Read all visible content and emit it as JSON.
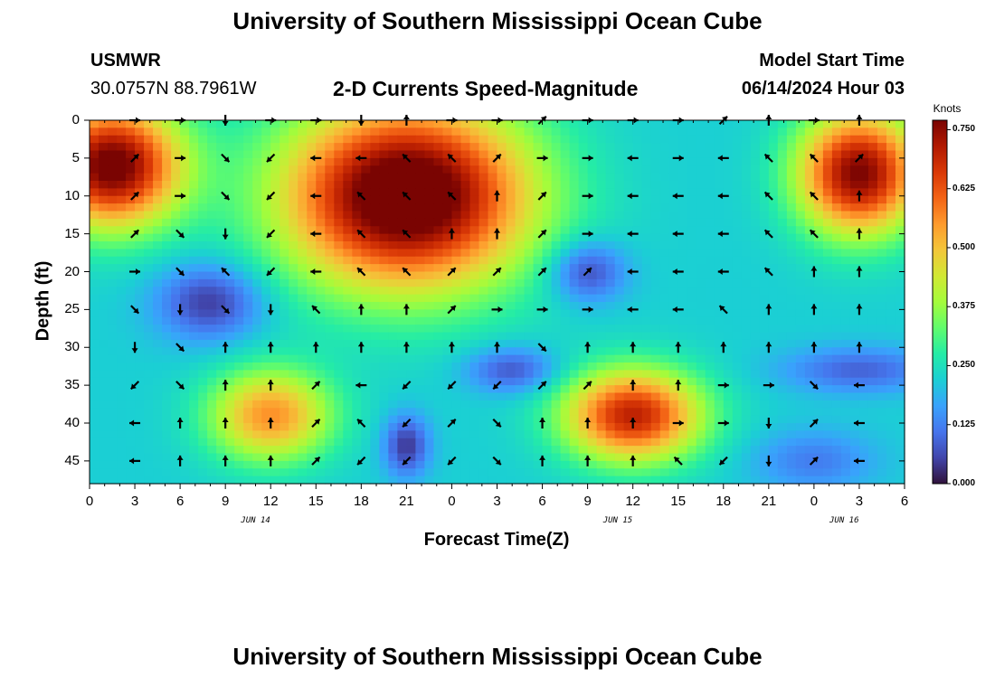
{
  "page": {
    "title": "University of Southern Mississippi Ocean Cube",
    "station": "USMWR",
    "coords": "30.0757N  88.7961W",
    "subtitle": "2-D Currents Speed-Magnitude",
    "model_start_label": "Model Start Time",
    "model_start_value": "06/14/2024 Hour 03",
    "footer_title": "University of Southern Mississippi Ocean Cube"
  },
  "chart_data": {
    "type": "heatmap",
    "subtitle": "2-D Currents Speed-Magnitude",
    "xlabel": "Forecast Time(Z)",
    "ylabel": "Depth (ft)",
    "x_ticks": [
      "0",
      "3",
      "6",
      "9",
      "12",
      "15",
      "18",
      "21",
      "0",
      "3",
      "6",
      "9",
      "12",
      "15",
      "18",
      "21",
      "0",
      "3",
      "6"
    ],
    "x_range_hours": [
      0,
      54
    ],
    "day_labels": [
      {
        "text": "JUN 14",
        "hour": 11
      },
      {
        "text": "JUN 15",
        "hour": 35
      },
      {
        "text": "JUN 16",
        "hour": 50
      }
    ],
    "y_ticks": [
      0,
      5,
      10,
      15,
      20,
      25,
      30,
      35,
      40,
      45
    ],
    "y_range": [
      0,
      48
    ],
    "y_inverted": true,
    "colorbar": {
      "unit": "Knots",
      "ticks": [
        "0.000",
        "0.125",
        "0.250",
        "0.375",
        "0.500",
        "0.625",
        "0.750"
      ],
      "range": [
        0,
        0.77
      ],
      "colormap": [
        "#30123b",
        "#4145ab",
        "#4675ed",
        "#39a2fc",
        "#1bcfd4",
        "#24eca6",
        "#61fc6c",
        "#a4fc3b",
        "#d1e834",
        "#f3c63a",
        "#fe9b2d",
        "#f36315",
        "#d93806",
        "#b11901",
        "#7a0402"
      ]
    },
    "speed_blobs": [
      {
        "hour": 1.5,
        "depth": 6,
        "hr_width": 4.5,
        "depth_width": 8,
        "amplitude": 0.58
      },
      {
        "hour": 21.0,
        "depth": 10,
        "hr_width": 8.0,
        "depth_width": 12,
        "amplitude": 0.65
      },
      {
        "hour": 51.0,
        "depth": 7,
        "hr_width": 4.0,
        "depth_width": 8,
        "amplitude": 0.55
      },
      {
        "hour": 12.0,
        "depth": 39,
        "hr_width": 4.0,
        "depth_width": 6,
        "amplitude": 0.34
      },
      {
        "hour": 36.0,
        "depth": 39,
        "hr_width": 4.5,
        "depth_width": 6,
        "amplitude": 0.48
      },
      {
        "hour": 8.0,
        "depth": 24,
        "hr_width": 3.5,
        "depth_width": 5,
        "amplitude": -0.18
      },
      {
        "hour": 33.0,
        "depth": 20,
        "hr_width": 2.5,
        "depth_width": 4,
        "amplitude": -0.17
      },
      {
        "hour": 28.0,
        "depth": 33,
        "hr_width": 3.0,
        "depth_width": 3,
        "amplitude": -0.15
      },
      {
        "hour": 21.0,
        "depth": 43,
        "hr_width": 1.5,
        "depth_width": 4,
        "amplitude": -0.18
      },
      {
        "hour": 51.0,
        "depth": 33,
        "hr_width": 5.0,
        "depth_width": 3,
        "amplitude": -0.13
      },
      {
        "hour": 48.0,
        "depth": 45,
        "hr_width": 4.0,
        "depth_width": 4,
        "amplitude": -0.1
      }
    ],
    "speed_background": 0.22,
    "vector_rows_depth": [
      0,
      5,
      10,
      15,
      20,
      25,
      30,
      35,
      40,
      45
    ],
    "vector_cols_hour": [
      3,
      6,
      9,
      12,
      15,
      18,
      21,
      24,
      27,
      30,
      33,
      36,
      39,
      42,
      45,
      48,
      51
    ],
    "vector_directions_deg": [
      [
        "e",
        "e",
        "s",
        "e",
        "e",
        "s",
        "n",
        "e",
        "e",
        "ne",
        "e",
        "e",
        "e",
        "ne",
        "n",
        "e",
        "n"
      ],
      [
        "ne",
        "e",
        "se",
        "sw",
        "w",
        "w",
        "nw",
        "nw",
        "ne",
        "e",
        "e",
        "w",
        "e",
        "w",
        "nw",
        "nw",
        "ne"
      ],
      [
        "ne",
        "e",
        "se",
        "sw",
        "w",
        "nw",
        "nw",
        "nw",
        "n",
        "ne",
        "e",
        "w",
        "w",
        "w",
        "nw",
        "nw",
        "n"
      ],
      [
        "ne",
        "se",
        "s",
        "sw",
        "w",
        "nw",
        "nw",
        "n",
        "n",
        "ne",
        "e",
        "w",
        "w",
        "w",
        "nw",
        "nw",
        "n"
      ],
      [
        "e",
        "se",
        "nw",
        "sw",
        "w",
        "nw",
        "nw",
        "ne",
        "ne",
        "ne",
        "ne",
        "w",
        "w",
        "w",
        "nw",
        "n",
        "n"
      ],
      [
        "se",
        "s",
        "se",
        "s",
        "nw",
        "n",
        "n",
        "ne",
        "e",
        "e",
        "e",
        "w",
        "w",
        "nw",
        "n",
        "n",
        "n"
      ],
      [
        "s",
        "se",
        "n",
        "n",
        "n",
        "n",
        "n",
        "n",
        "n",
        "se",
        "n",
        "n",
        "n",
        "n",
        "n",
        "n",
        "n"
      ],
      [
        "sw",
        "se",
        "n",
        "n",
        "ne",
        "w",
        "sw",
        "sw",
        "sw",
        "ne",
        "ne",
        "n",
        "n",
        "e",
        "e",
        "se",
        "w"
      ],
      [
        "w",
        "n",
        "n",
        "n",
        "ne",
        "nw",
        "sw",
        "ne",
        "se",
        "n",
        "n",
        "n",
        "e",
        "e",
        "s",
        "ne",
        "w"
      ],
      [
        "w",
        "n",
        "n",
        "n",
        "ne",
        "sw",
        "sw",
        "sw",
        "se",
        "n",
        "n",
        "n",
        "nw",
        "sw",
        "s",
        "ne",
        "w"
      ]
    ]
  }
}
